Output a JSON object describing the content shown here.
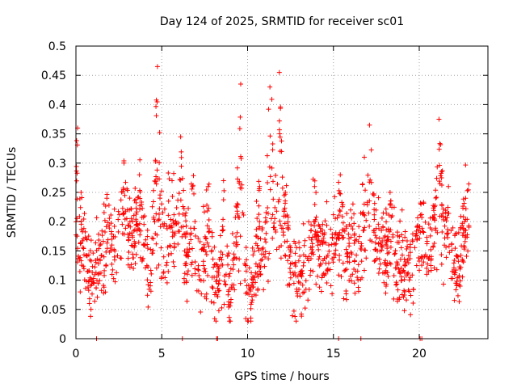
{
  "chart_data": {
    "type": "scatter",
    "title": "Day 124 of 2025, SRMTID for receiver sc01",
    "xlabel": "GPS time / hours",
    "ylabel": "SRMTID / TECUs",
    "xlim": [
      0,
      24
    ],
    "ylim": [
      0,
      0.5
    ],
    "xticks": [
      0,
      5,
      10,
      15,
      20
    ],
    "xtick_labels": [
      "0",
      "5",
      "10",
      "15",
      "20"
    ],
    "yticks": [
      0,
      0.05,
      0.1,
      0.15,
      0.2,
      0.25,
      0.3,
      0.35,
      0.4,
      0.45,
      0.5
    ],
    "ytick_labels": [
      "0",
      "0.05",
      "0.1",
      "0.15",
      "0.2",
      "0.25",
      "0.3",
      "0.35",
      "0.4",
      "0.45",
      "0.5"
    ],
    "grid": true,
    "marker": "+",
    "marker_color": "#ff0000",
    "series": [
      {
        "name": "SRMTID",
        "x_range": [
          0,
          22.9
        ],
        "baseline": [
          [
            0.0,
            0.16
          ],
          [
            0.3,
            0.12
          ],
          [
            0.7,
            0.1
          ],
          [
            1.0,
            0.11
          ],
          [
            1.5,
            0.13
          ],
          [
            2.0,
            0.15
          ],
          [
            2.5,
            0.16
          ],
          [
            3.0,
            0.17
          ],
          [
            3.5,
            0.18
          ],
          [
            4.0,
            0.15
          ],
          [
            4.3,
            0.1
          ],
          [
            4.6,
            0.16
          ],
          [
            5.0,
            0.14
          ],
          [
            5.5,
            0.16
          ],
          [
            6.0,
            0.15
          ],
          [
            6.5,
            0.13
          ],
          [
            7.0,
            0.12
          ],
          [
            7.5,
            0.12
          ],
          [
            8.0,
            0.1
          ],
          [
            8.5,
            0.08
          ],
          [
            9.0,
            0.07
          ],
          [
            9.3,
            0.15
          ],
          [
            9.7,
            0.11
          ],
          [
            10.0,
            0.09
          ],
          [
            10.5,
            0.1
          ],
          [
            11.0,
            0.13
          ],
          [
            11.5,
            0.16
          ],
          [
            12.0,
            0.14
          ],
          [
            12.5,
            0.12
          ],
          [
            13.0,
            0.1
          ],
          [
            13.5,
            0.12
          ],
          [
            14.0,
            0.14
          ],
          [
            14.5,
            0.15
          ],
          [
            15.0,
            0.16
          ],
          [
            15.5,
            0.14
          ],
          [
            16.0,
            0.11
          ],
          [
            16.5,
            0.13
          ],
          [
            17.0,
            0.16
          ],
          [
            17.5,
            0.17
          ],
          [
            18.0,
            0.15
          ],
          [
            18.5,
            0.12
          ],
          [
            19.0,
            0.09
          ],
          [
            19.5,
            0.12
          ],
          [
            20.0,
            0.15
          ],
          [
            20.5,
            0.17
          ],
          [
            21.0,
            0.18
          ],
          [
            21.5,
            0.15
          ],
          [
            22.0,
            0.12
          ],
          [
            22.5,
            0.13
          ],
          [
            22.9,
            0.18
          ]
        ],
        "peaks": [
          {
            "x": 0.1,
            "y": 0.36
          },
          {
            "x": 0.3,
            "y": 0.25
          },
          {
            "x": 1.8,
            "y": 0.24
          },
          {
            "x": 2.8,
            "y": 0.3
          },
          {
            "x": 3.7,
            "y": 0.28
          },
          {
            "x": 4.75,
            "y": 0.465
          },
          {
            "x": 5.6,
            "y": 0.27
          },
          {
            "x": 6.1,
            "y": 0.345
          },
          {
            "x": 6.8,
            "y": 0.26
          },
          {
            "x": 7.7,
            "y": 0.26
          },
          {
            "x": 8.6,
            "y": 0.27
          },
          {
            "x": 9.6,
            "y": 0.435
          },
          {
            "x": 10.7,
            "y": 0.26
          },
          {
            "x": 11.3,
            "y": 0.43
          },
          {
            "x": 11.85,
            "y": 0.455
          },
          {
            "x": 12.2,
            "y": 0.25
          },
          {
            "x": 13.9,
            "y": 0.26
          },
          {
            "x": 15.4,
            "y": 0.28
          },
          {
            "x": 16.0,
            "y": 0.22
          },
          {
            "x": 16.8,
            "y": 0.31
          },
          {
            "x": 17.1,
            "y": 0.365
          },
          {
            "x": 18.3,
            "y": 0.25
          },
          {
            "x": 19.0,
            "y": 0.22
          },
          {
            "x": 20.1,
            "y": 0.23
          },
          {
            "x": 21.15,
            "y": 0.375
          },
          {
            "x": 21.7,
            "y": 0.26
          },
          {
            "x": 22.7,
            "y": 0.24
          }
        ],
        "zero_values_at_x": [
          1.2,
          6.2,
          8.2,
          8.25,
          15.3,
          16.6,
          20.05,
          20.15
        ],
        "approx_point_count": 1500
      }
    ]
  }
}
